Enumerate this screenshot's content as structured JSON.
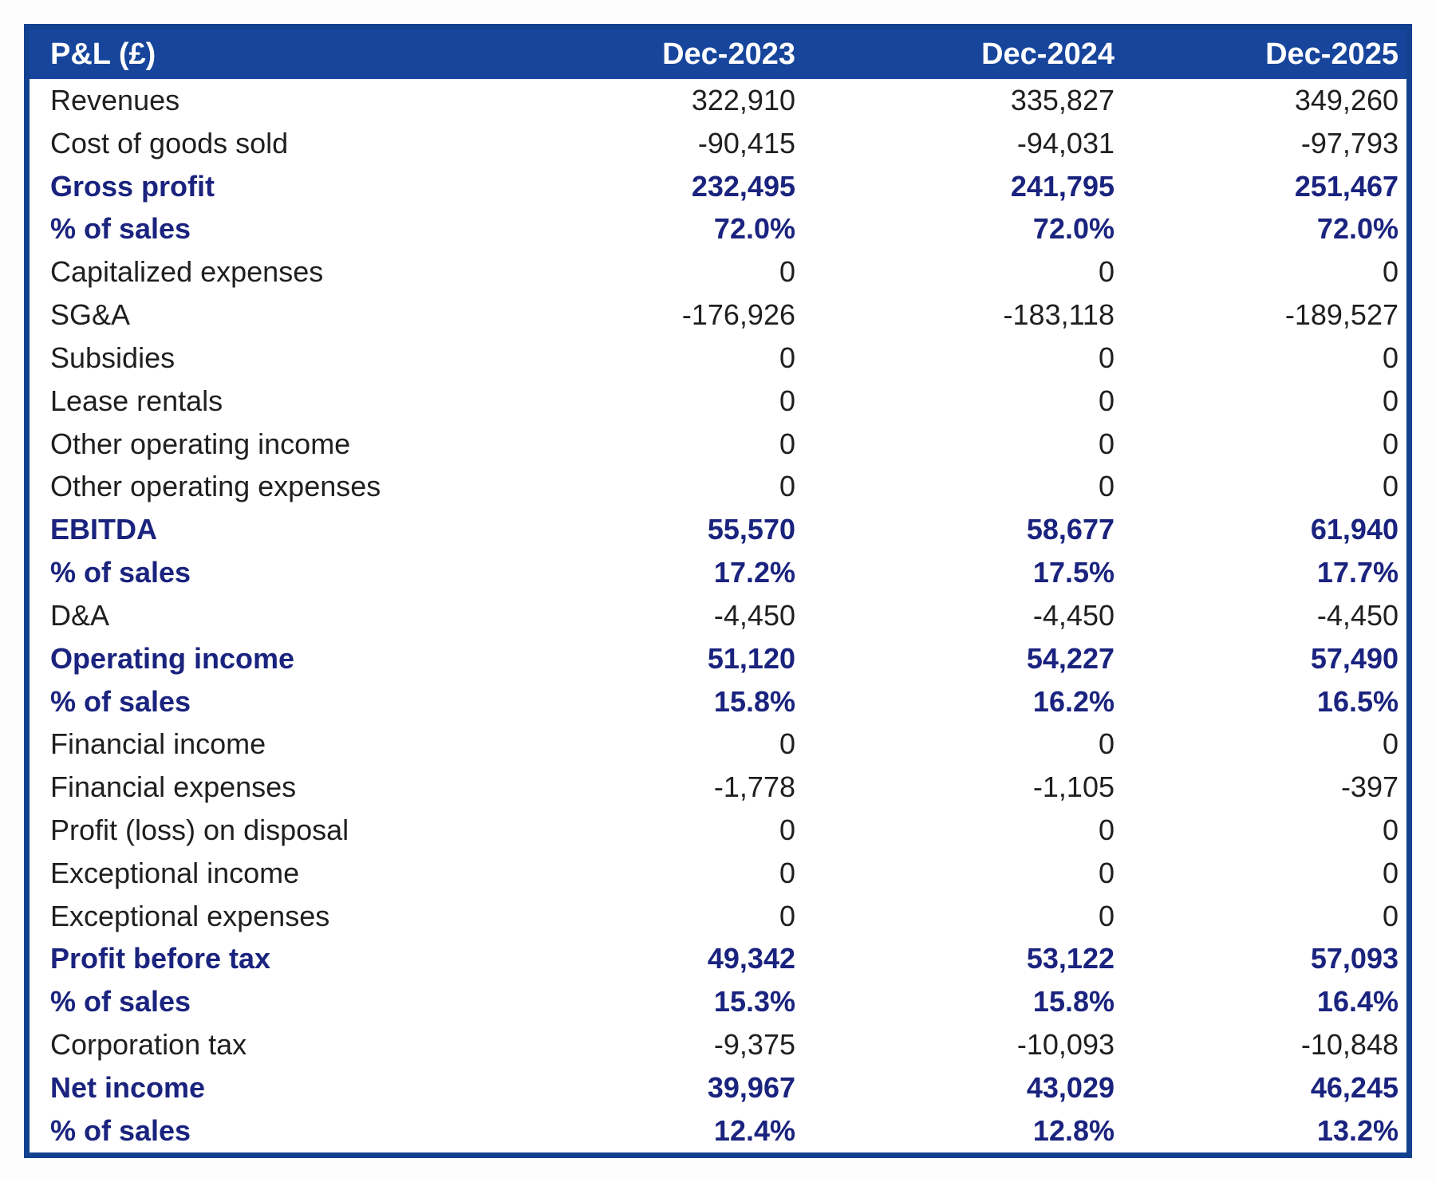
{
  "chart_data": {
    "type": "table",
    "title": "P&L (£)",
    "columns": [
      "Dec-2023",
      "Dec-2024",
      "Dec-2025"
    ],
    "rows": [
      {
        "label": "Revenues",
        "values": [
          "322,910",
          "335,827",
          "349,260"
        ],
        "emphasis": false
      },
      {
        "label": "Cost of goods sold",
        "values": [
          "-90,415",
          "-94,031",
          "-97,793"
        ],
        "emphasis": false
      },
      {
        "label": "Gross profit",
        "values": [
          "232,495",
          "241,795",
          "251,467"
        ],
        "emphasis": true
      },
      {
        "label": "% of sales",
        "values": [
          "72.0%",
          "72.0%",
          "72.0%"
        ],
        "emphasis": true
      },
      {
        "label": "Capitalized expenses",
        "values": [
          "0",
          "0",
          "0"
        ],
        "emphasis": false
      },
      {
        "label": "SG&A",
        "values": [
          "-176,926",
          "-183,118",
          "-189,527"
        ],
        "emphasis": false
      },
      {
        "label": "Subsidies",
        "values": [
          "0",
          "0",
          "0"
        ],
        "emphasis": false
      },
      {
        "label": "Lease rentals",
        "values": [
          "0",
          "0",
          "0"
        ],
        "emphasis": false
      },
      {
        "label": "Other operating income",
        "values": [
          "0",
          "0",
          "0"
        ],
        "emphasis": false
      },
      {
        "label": "Other operating expenses",
        "values": [
          "0",
          "0",
          "0"
        ],
        "emphasis": false
      },
      {
        "label": "EBITDA",
        "values": [
          "55,570",
          "58,677",
          "61,940"
        ],
        "emphasis": true
      },
      {
        "label": "% of sales",
        "values": [
          "17.2%",
          "17.5%",
          "17.7%"
        ],
        "emphasis": true
      },
      {
        "label": "D&A",
        "values": [
          "-4,450",
          "-4,450",
          "-4,450"
        ],
        "emphasis": false
      },
      {
        "label": "Operating income",
        "values": [
          "51,120",
          "54,227",
          "57,490"
        ],
        "emphasis": true
      },
      {
        "label": "% of sales",
        "values": [
          "15.8%",
          "16.2%",
          "16.5%"
        ],
        "emphasis": true
      },
      {
        "label": "Financial income",
        "values": [
          "0",
          "0",
          "0"
        ],
        "emphasis": false
      },
      {
        "label": "Financial expenses",
        "values": [
          "-1,778",
          "-1,105",
          "-397"
        ],
        "emphasis": false
      },
      {
        "label": "Profit (loss) on disposal",
        "values": [
          "0",
          "0",
          "0"
        ],
        "emphasis": false
      },
      {
        "label": "Exceptional income",
        "values": [
          "0",
          "0",
          "0"
        ],
        "emphasis": false
      },
      {
        "label": "Exceptional expenses",
        "values": [
          "0",
          "0",
          "0"
        ],
        "emphasis": false
      },
      {
        "label": "Profit before tax",
        "values": [
          "49,342",
          "53,122",
          "57,093"
        ],
        "emphasis": true
      },
      {
        "label": "% of sales",
        "values": [
          "15.3%",
          "15.8%",
          "16.4%"
        ],
        "emphasis": true
      },
      {
        "label": "Corporation tax",
        "values": [
          "-9,375",
          "-10,093",
          "-10,848"
        ],
        "emphasis": false
      },
      {
        "label": "Net income",
        "values": [
          "39,967",
          "43,029",
          "46,245"
        ],
        "emphasis": true
      },
      {
        "label": "% of sales",
        "values": [
          "12.4%",
          "12.8%",
          "13.2%"
        ],
        "emphasis": true
      }
    ]
  },
  "colors": {
    "header_bg": "#17459c",
    "header_text": "#ffffff",
    "emphasis_text": "#1a237e",
    "body_text": "#1f1f1f",
    "border": "#12418f"
  }
}
